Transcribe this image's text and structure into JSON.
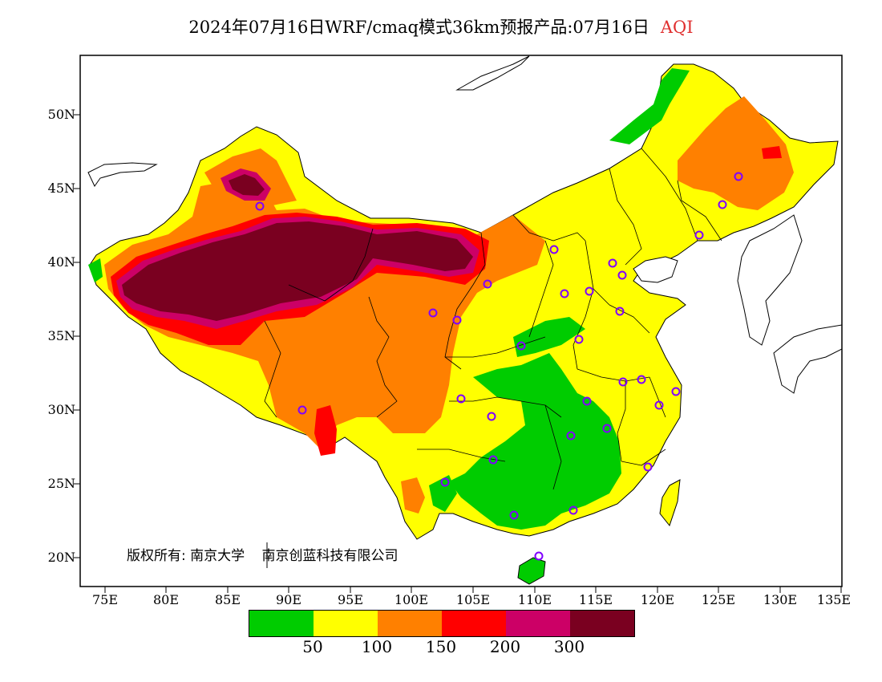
{
  "title": {
    "main": "2024年07月16日WRF/cmaq模式36km预报产品:07月16日",
    "variable": "AQI"
  },
  "axes": {
    "y_ticks": [
      "50N",
      "45N",
      "40N",
      "35N",
      "30N",
      "25N",
      "20N"
    ],
    "x_ticks": [
      "75E",
      "80E",
      "85E",
      "90E",
      "95E",
      "100E",
      "105E",
      "110E",
      "115E",
      "120E",
      "125E",
      "130E",
      "135E"
    ]
  },
  "copyright": {
    "part1": "版权所有: 南京大学",
    "part2": "南京创蓝科技有限公司"
  },
  "legend": {
    "colors": [
      "#00cc00",
      "#ffff00",
      "#ff8000",
      "#ff0000",
      "#cc0066",
      "#7a0020"
    ],
    "labels": [
      "50",
      "100",
      "150",
      "200",
      "300"
    ]
  },
  "map": {
    "extent": {
      "lon": [
        73,
        135
      ],
      "lat": [
        18,
        54
      ]
    },
    "colors": {
      "good": "#00cc00",
      "moderate": "#ffff00",
      "sensitive": "#ff8000",
      "unhealthy": "#ff0000",
      "very_unhealthy": "#cc0066",
      "hazardous": "#7a0020",
      "station": "#8000ff"
    }
  }
}
